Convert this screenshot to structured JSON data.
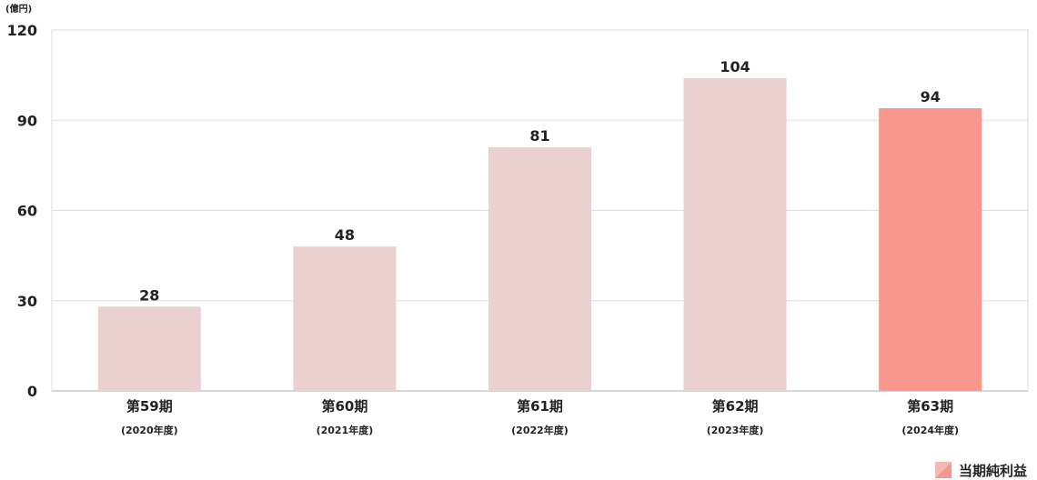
{
  "chart_data": {
    "type": "bar",
    "unit_label": "(億円)",
    "categories": [
      "第59期",
      "第60期",
      "第61期",
      "第62期",
      "第63期"
    ],
    "sub_categories": [
      "(2020年度)",
      "(2021年度)",
      "(2022年度)",
      "(2023年度)",
      "(2024年度)"
    ],
    "series": [
      {
        "name": "当期純利益",
        "values": [
          28,
          48,
          81,
          104,
          94
        ]
      }
    ],
    "ylim": [
      0,
      120
    ],
    "yticks": [
      0,
      30,
      60,
      90,
      120
    ],
    "grid": true,
    "legend_position": "bottom-right",
    "colors": {
      "bar_default": "#ead1cf",
      "bar_highlight": "#f8978e",
      "legend_swatch_a": "#f3b9b3",
      "legend_swatch_b": "#f8978e",
      "grid": "#dddddd",
      "axis": "#c8c8c8"
    },
    "highlight_index": 4
  }
}
